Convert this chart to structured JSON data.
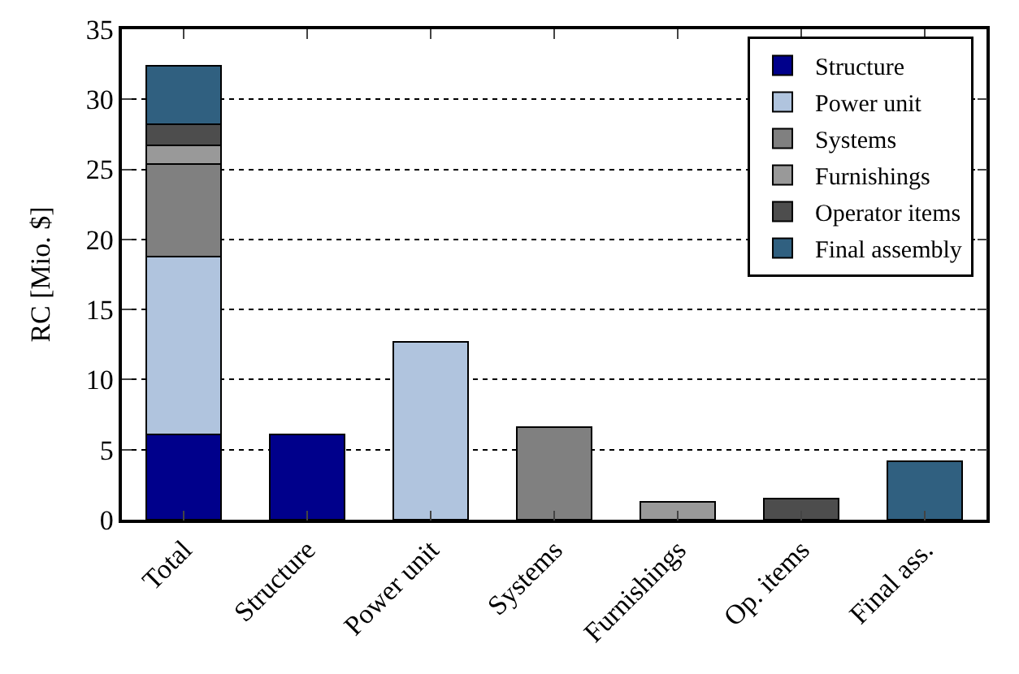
{
  "chart_data": {
    "type": "bar",
    "stacked": true,
    "ylabel": "RC [Mio. $]",
    "categories": [
      "Total",
      "Structure",
      "Power unit",
      "Systems",
      "Furnishings",
      "Op. items",
      "Final ass."
    ],
    "series": [
      {
        "name": "Structure",
        "color": "#00008b",
        "values": [
          6.1,
          6.1,
          null,
          null,
          null,
          null,
          null
        ]
      },
      {
        "name": "Power unit",
        "color": "#b0c4de",
        "values": [
          12.7,
          null,
          12.7,
          null,
          null,
          null,
          null
        ]
      },
      {
        "name": "Systems",
        "color": "#808080",
        "values": [
          6.6,
          null,
          null,
          6.6,
          null,
          null,
          null
        ]
      },
      {
        "name": "Furnishings",
        "color": "#999999",
        "values": [
          1.3,
          null,
          null,
          null,
          1.3,
          null,
          null
        ]
      },
      {
        "name": "Operator items",
        "color": "#4d4d4d",
        "values": [
          1.5,
          null,
          null,
          null,
          null,
          1.5,
          null
        ]
      },
      {
        "name": "Final assembly",
        "color": "#306080",
        "values": [
          4.2,
          null,
          null,
          null,
          null,
          null,
          4.2
        ]
      }
    ],
    "ylim": [
      0,
      35
    ],
    "yticks": [
      0,
      5,
      10,
      15,
      20,
      25,
      30,
      35
    ],
    "grid": "y",
    "legend": "top right"
  }
}
